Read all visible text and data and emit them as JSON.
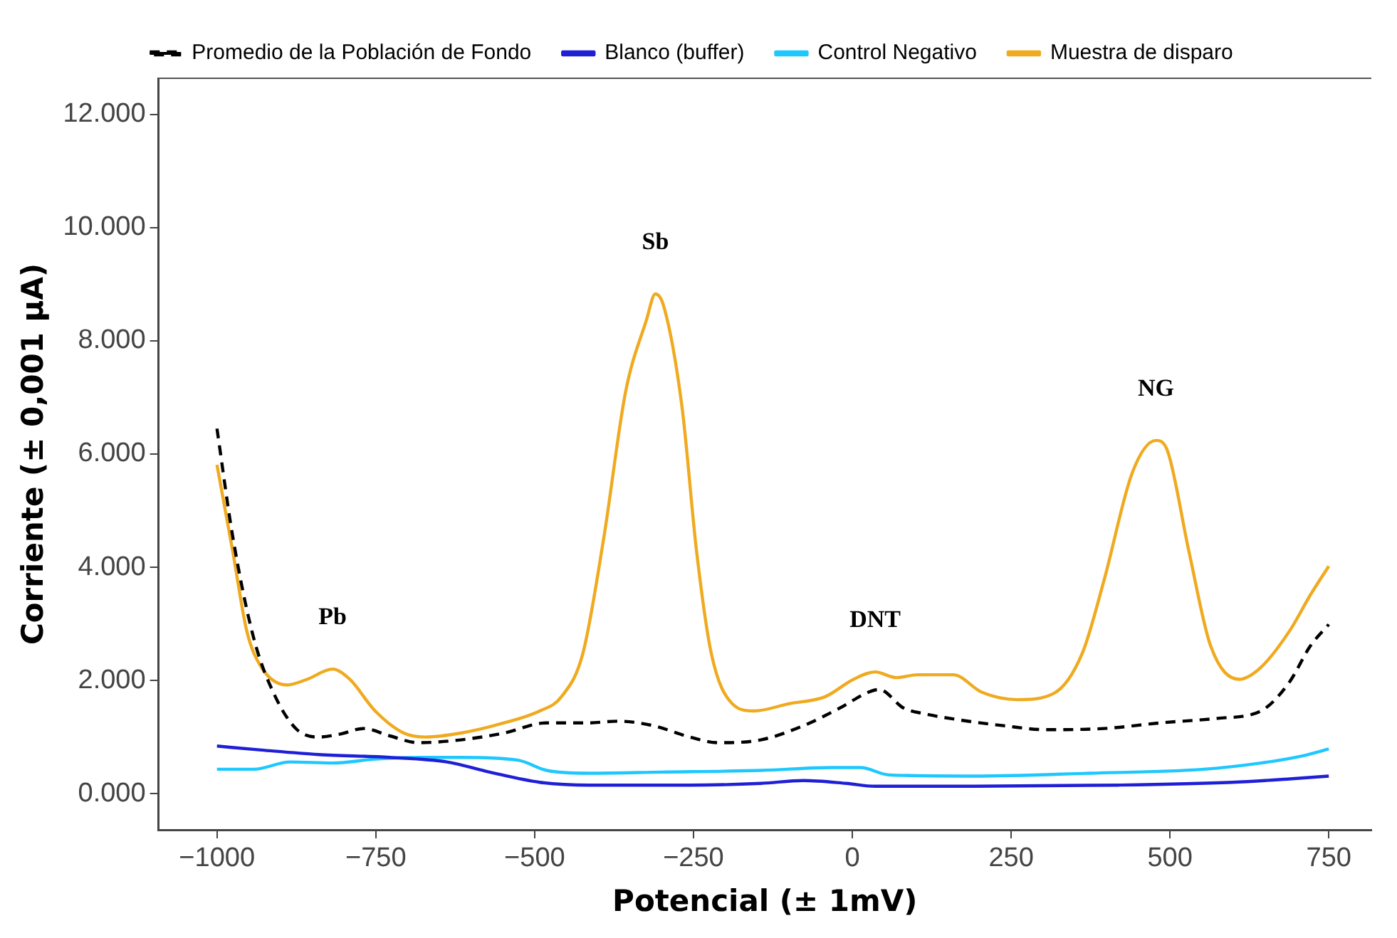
{
  "chart_data": {
    "type": "line",
    "xlabel": "Potencial (± 1mV)",
    "ylabel": "Corriente (± 0,001 µA)",
    "xlim": [
      -1092,
      817
    ],
    "xticks": [
      -1000,
      -750,
      -500,
      -250,
      0,
      250,
      500,
      750
    ],
    "ylim": [
      -0.64,
      12.64
    ],
    "yticks": [
      {
        "value": 0,
        "label": "0.000"
      },
      {
        "value": 2,
        "label": "2.000"
      },
      {
        "value": 4,
        "label": "4.000"
      },
      {
        "value": 6,
        "label": "6.000"
      },
      {
        "value": 8,
        "label": "8.000"
      },
      {
        "value": 10,
        "label": "10.000"
      },
      {
        "value": 12,
        "label": "12.000"
      }
    ],
    "grid": false,
    "legend": "top",
    "marker": "none",
    "annotations": [
      {
        "text": "Pb",
        "x": -818,
        "y": 2.2
      },
      {
        "text": "Sb",
        "x": -310,
        "y": 8.83
      },
      {
        "text": "DNT",
        "x": 36,
        "y": 2.15
      },
      {
        "text": "NG",
        "x": 478,
        "y": 6.24
      }
    ],
    "series": [
      {
        "name": "Promedio de la Población de Fondo",
        "color": "#000000",
        "line_style": "dashed",
        "x": [
          -1000,
          -975,
          -942,
          -908,
          -874,
          -840,
          -807,
          -769,
          -728,
          -683,
          -616,
          -548,
          -481,
          -414,
          -369,
          -313,
          -256,
          -211,
          -144,
          -77,
          -20,
          25,
          42,
          81,
          114,
          170,
          238,
          305,
          396,
          485,
          575,
          643,
          688,
          721,
          750
        ],
        "values": [
          6.45,
          4.53,
          2.74,
          1.71,
          1.13,
          1.0,
          1.05,
          1.15,
          1.02,
          0.9,
          0.95,
          1.07,
          1.25,
          1.25,
          1.28,
          1.2,
          1.0,
          0.9,
          0.95,
          1.2,
          1.51,
          1.79,
          1.84,
          1.51,
          1.41,
          1.3,
          1.2,
          1.13,
          1.15,
          1.25,
          1.33,
          1.46,
          1.97,
          2.61,
          2.99
        ]
      },
      {
        "name": "Blanco (buffer)",
        "color": "#1f1fd6",
        "line_style": "solid",
        "x": [
          -1000,
          -930,
          -840,
          -728,
          -638,
          -571,
          -492,
          -414,
          -256,
          -144,
          -77,
          -9,
          36,
          193,
          418,
          598,
          688,
          750
        ],
        "values": [
          0.84,
          0.77,
          0.69,
          0.64,
          0.56,
          0.38,
          0.2,
          0.15,
          0.15,
          0.18,
          0.23,
          0.18,
          0.13,
          0.13,
          0.15,
          0.2,
          0.26,
          0.31
        ]
      },
      {
        "name": "Control Negativo",
        "color": "#1ec8ff",
        "line_style": "solid",
        "x": [
          -1000,
          -942,
          -885,
          -818,
          -751,
          -683,
          -616,
          -526,
          -481,
          -414,
          -301,
          -144,
          -32,
          13,
          58,
          193,
          373,
          553,
          643,
          710,
          750
        ],
        "values": [
          0.43,
          0.43,
          0.56,
          0.54,
          0.61,
          0.64,
          0.64,
          0.59,
          0.41,
          0.36,
          0.38,
          0.41,
          0.46,
          0.46,
          0.33,
          0.31,
          0.36,
          0.43,
          0.54,
          0.67,
          0.79
        ]
      },
      {
        "name": "Muestra de disparo",
        "color": "#efaa1f",
        "line_style": "solid",
        "x": [
          -1000,
          -975,
          -953,
          -930,
          -890,
          -858,
          -818,
          -791,
          -751,
          -706,
          -672,
          -616,
          -548,
          -492,
          -458,
          -424,
          -391,
          -357,
          -324,
          -310,
          -297,
          -268,
          -245,
          -222,
          -189,
          -155,
          -99,
          -43,
          2,
          36,
          69,
          103,
          159,
          204,
          260,
          317,
          362,
          396,
          441,
          478,
          496,
          530,
          564,
          609,
          643,
          688,
          721,
          750
        ],
        "values": [
          5.81,
          4.27,
          2.87,
          2.23,
          1.92,
          2.02,
          2.2,
          2.02,
          1.46,
          1.07,
          1.0,
          1.07,
          1.25,
          1.46,
          1.71,
          2.48,
          4.53,
          7.09,
          8.37,
          8.83,
          8.62,
          6.83,
          4.27,
          2.48,
          1.59,
          1.46,
          1.59,
          1.71,
          2.02,
          2.15,
          2.05,
          2.1,
          2.1,
          1.79,
          1.66,
          1.77,
          2.48,
          3.76,
          5.68,
          6.24,
          6.06,
          4.27,
          2.61,
          2.02,
          2.23,
          2.87,
          3.51,
          4.02
        ]
      }
    ]
  }
}
